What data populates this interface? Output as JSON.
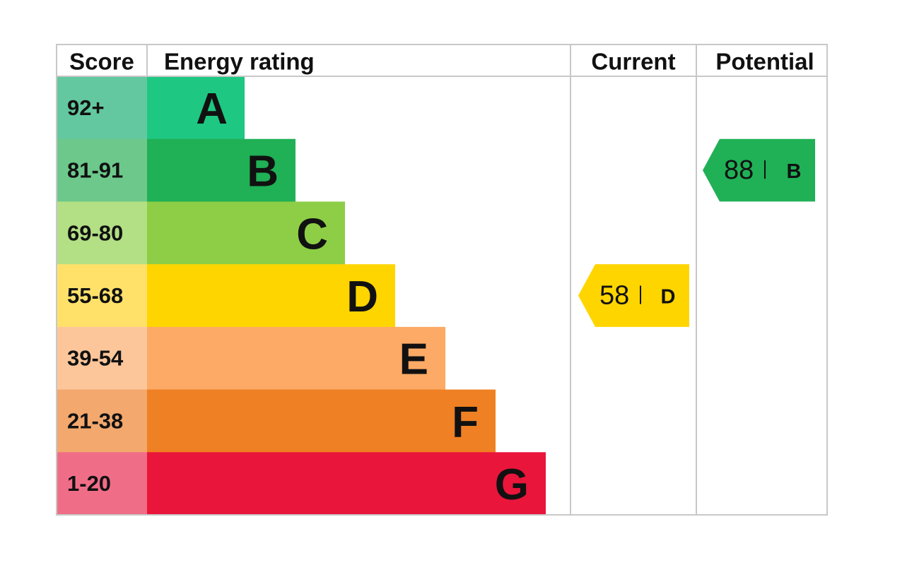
{
  "headers": [
    "Score",
    "Energy rating",
    "Current",
    "Potential"
  ],
  "bands": [
    {
      "score": "92+",
      "letter": "A"
    },
    {
      "score": "81-91",
      "letter": "B"
    },
    {
      "score": "69-80",
      "letter": "C"
    },
    {
      "score": "55-68",
      "letter": "D"
    },
    {
      "score": "39-54",
      "letter": "E"
    },
    {
      "score": "21-38",
      "letter": "F"
    },
    {
      "score": "1-20",
      "letter": "G"
    }
  ],
  "current": {
    "score": 58,
    "letter": "D"
  },
  "potential": {
    "score": 88,
    "letter": "B"
  }
}
